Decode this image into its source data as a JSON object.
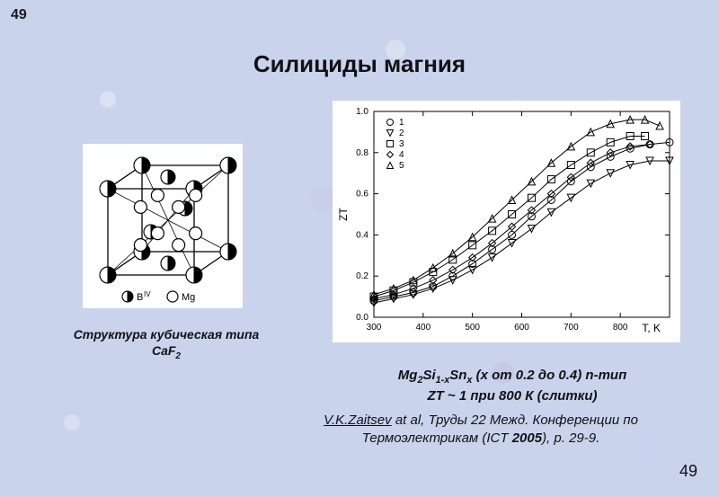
{
  "page_number_top": "49",
  "page_number_bottom": "49",
  "title": "Силициды магния",
  "structure": {
    "caption_line1": "Структура кубическая типа",
    "caption_line2_formula": "CaF",
    "caption_line2_sub": "2",
    "legend_b": "B",
    "legend_b_sup": "IV",
    "legend_mg": "Mg",
    "cube_size": 130,
    "stroke": "#000000",
    "fill_black": "#000000",
    "fill_white": "#ffffff",
    "circle_r_corner": 9,
    "circle_r_inner": 7
  },
  "chart": {
    "type": "line-scatter",
    "xlim": [
      300,
      900
    ],
    "ylim": [
      0.0,
      1.0
    ],
    "xtick_step": 100,
    "ytick_step": 0.2,
    "xlabel": "T, K",
    "ylabel": "ZT",
    "axis_stroke": "#000000",
    "label_fontsize": 12,
    "tick_fontsize": 10,
    "marker_size": 4,
    "line_width": 1,
    "legend_items": [
      {
        "id": "1",
        "marker": "circle"
      },
      {
        "id": "2",
        "marker": "triangle-down"
      },
      {
        "id": "3",
        "marker": "square"
      },
      {
        "id": "4",
        "marker": "diamond"
      },
      {
        "id": "5",
        "marker": "triangle-up"
      }
    ],
    "series": [
      {
        "id": "1",
        "marker": "circle",
        "points": [
          [
            300,
            0.08
          ],
          [
            340,
            0.1
          ],
          [
            380,
            0.12
          ],
          [
            420,
            0.15
          ],
          [
            460,
            0.2
          ],
          [
            500,
            0.26
          ],
          [
            540,
            0.33
          ],
          [
            580,
            0.4
          ],
          [
            620,
            0.49
          ],
          [
            660,
            0.57
          ],
          [
            700,
            0.66
          ],
          [
            740,
            0.73
          ],
          [
            780,
            0.78
          ],
          [
            820,
            0.82
          ],
          [
            860,
            0.84
          ],
          [
            900,
            0.85
          ]
        ]
      },
      {
        "id": "2",
        "marker": "triangle-down",
        "points": [
          [
            300,
            0.07
          ],
          [
            340,
            0.09
          ],
          [
            380,
            0.11
          ],
          [
            420,
            0.14
          ],
          [
            460,
            0.18
          ],
          [
            500,
            0.23
          ],
          [
            540,
            0.29
          ],
          [
            580,
            0.36
          ],
          [
            620,
            0.43
          ],
          [
            660,
            0.51
          ],
          [
            700,
            0.58
          ],
          [
            740,
            0.65
          ],
          [
            780,
            0.7
          ],
          [
            820,
            0.74
          ],
          [
            860,
            0.76
          ],
          [
            900,
            0.76
          ]
        ]
      },
      {
        "id": "3",
        "marker": "square",
        "points": [
          [
            300,
            0.1
          ],
          [
            340,
            0.13
          ],
          [
            380,
            0.17
          ],
          [
            420,
            0.22
          ],
          [
            460,
            0.28
          ],
          [
            500,
            0.35
          ],
          [
            540,
            0.42
          ],
          [
            580,
            0.5
          ],
          [
            620,
            0.58
          ],
          [
            660,
            0.67
          ],
          [
            700,
            0.74
          ],
          [
            740,
            0.8
          ],
          [
            780,
            0.85
          ],
          [
            820,
            0.88
          ],
          [
            850,
            0.88
          ]
        ]
      },
      {
        "id": "4",
        "marker": "diamond",
        "points": [
          [
            300,
            0.09
          ],
          [
            340,
            0.11
          ],
          [
            380,
            0.14
          ],
          [
            420,
            0.18
          ],
          [
            460,
            0.23
          ],
          [
            500,
            0.29
          ],
          [
            540,
            0.36
          ],
          [
            580,
            0.44
          ],
          [
            620,
            0.52
          ],
          [
            660,
            0.6
          ],
          [
            700,
            0.68
          ],
          [
            740,
            0.75
          ],
          [
            780,
            0.8
          ],
          [
            820,
            0.83
          ],
          [
            860,
            0.84
          ]
        ]
      },
      {
        "id": "5",
        "marker": "triangle-up",
        "points": [
          [
            300,
            0.11
          ],
          [
            340,
            0.14
          ],
          [
            380,
            0.18
          ],
          [
            420,
            0.24
          ],
          [
            460,
            0.31
          ],
          [
            500,
            0.39
          ],
          [
            540,
            0.48
          ],
          [
            580,
            0.57
          ],
          [
            620,
            0.66
          ],
          [
            660,
            0.75
          ],
          [
            700,
            0.83
          ],
          [
            740,
            0.9
          ],
          [
            780,
            0.94
          ],
          [
            820,
            0.96
          ],
          [
            850,
            0.96
          ],
          [
            880,
            0.93
          ]
        ]
      }
    ]
  },
  "fig_caption": {
    "compound_pre": "Mg",
    "compound_sub1": "2",
    "compound_mid": "Si",
    "compound_sub2": "1-x",
    "compound_end": "Sn",
    "compound_sub3": "x",
    "tail": " (x от 0.2 до 0.4) n-тип",
    "line2": "ZT ~ 1 при 800 К (слитки)"
  },
  "citation": {
    "author": "V.K.Zaitsev",
    "rest1": " at al, Труды 22 Межд. Конференции по Термоэлектрикам (ICT ",
    "year": "2005",
    "rest2": "), p. 29-9."
  }
}
